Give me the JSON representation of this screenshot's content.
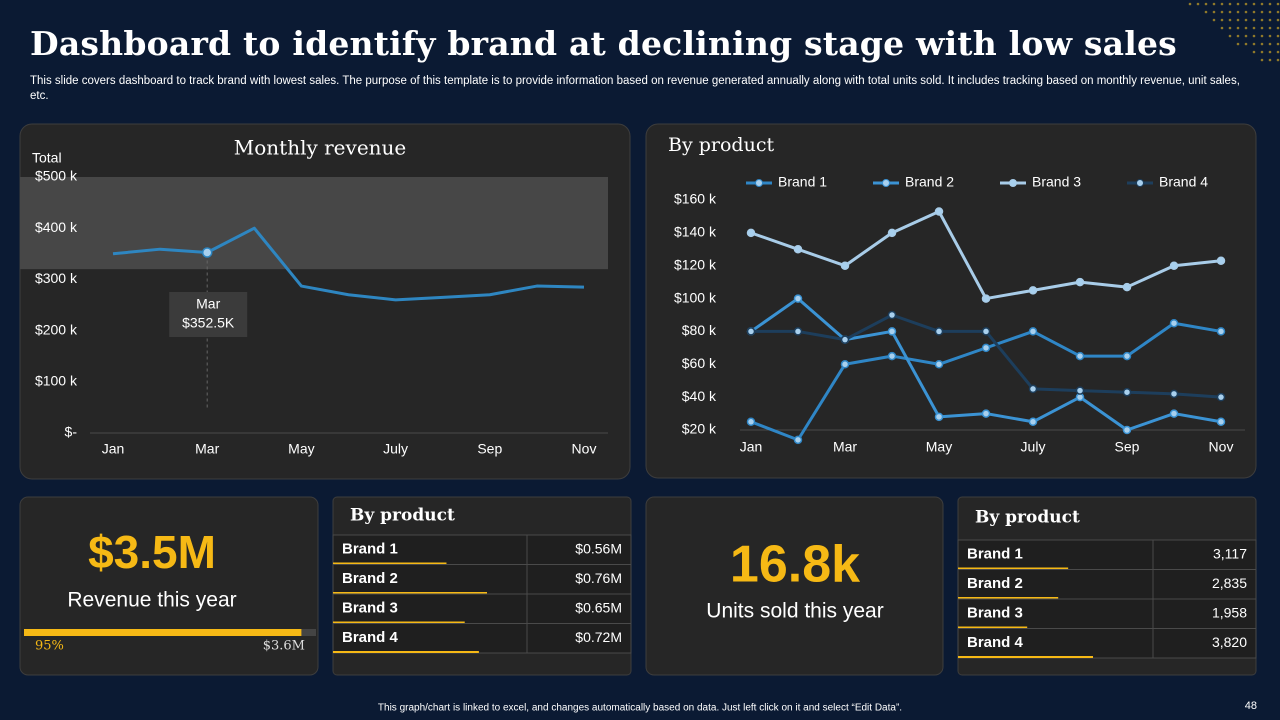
{
  "header": {
    "title": "Dashboard to identify brand at declining stage with low sales",
    "subtitle": "This slide covers dashboard to track brand with lowest sales. The purpose of this template is to provide information based on revenue generated annually along with total units sold. It includes tracking based on monthly revenue, unit sales, etc."
  },
  "chart_data": [
    {
      "type": "line",
      "title": "Monthly revenue",
      "y_label": "Total",
      "categories": [
        "Jan",
        null,
        "Mar",
        null,
        "May",
        null,
        "July",
        null,
        "Sep",
        null,
        "Nov"
      ],
      "series": [
        {
          "name": "Total",
          "color": "#2e86c1",
          "values": [
            350,
            359,
            352.5,
            400,
            287,
            270,
            260,
            265,
            270,
            287,
            285
          ]
        }
      ],
      "ylim": [
        0,
        500
      ],
      "yticks": [
        {
          "value": 0,
          "label": "$-"
        },
        {
          "value": 100,
          "label": "$100 k"
        },
        {
          "value": 200,
          "label": "$200 k"
        },
        {
          "value": 300,
          "label": "$300 k"
        },
        {
          "value": 400,
          "label": "$400 k"
        },
        {
          "value": 500,
          "label": "$500 k"
        }
      ],
      "highlight_range": [
        320,
        500
      ],
      "tooltip": {
        "title": "Mar",
        "label": "$352.5K"
      },
      "grid": false
    },
    {
      "type": "line",
      "title": "By product",
      "categories": [
        "Jan",
        null,
        "Mar",
        null,
        "May",
        null,
        "July",
        null,
        "Sep",
        null,
        "Nov"
      ],
      "series": [
        {
          "name": "Brand 1",
          "color": "#2f86c6",
          "values": [
            25,
            14,
            60,
            65,
            60,
            70,
            80,
            65,
            65,
            85,
            80
          ]
        },
        {
          "name": "Brand 2",
          "color": "#3b93d4",
          "values": [
            80,
            100,
            75,
            80,
            28,
            30,
            25,
            40,
            20,
            30,
            25
          ]
        },
        {
          "name": "Brand 3",
          "color": "#a8cce8",
          "values": [
            140,
            130,
            120,
            140,
            153,
            100,
            105,
            110,
            107,
            120,
            123
          ]
        },
        {
          "name": "Brand 4",
          "color": "#1d3e5c",
          "values": [
            80,
            80,
            75,
            90,
            80,
            80,
            45,
            44,
            43,
            42,
            40
          ]
        }
      ],
      "ylim": [
        20,
        160
      ],
      "yticks": [
        {
          "value": 20,
          "label": "$20 k"
        },
        {
          "value": 40,
          "label": "$40 k"
        },
        {
          "value": 60,
          "label": "$60 k"
        },
        {
          "value": 80,
          "label": "$80 k"
        },
        {
          "value": 100,
          "label": "$100 k"
        },
        {
          "value": 120,
          "label": "$120 k"
        },
        {
          "value": 140,
          "label": "$140 k"
        },
        {
          "value": 160,
          "label": "$160 k"
        }
      ],
      "legend": "top",
      "grid": false
    }
  ],
  "revenue_card": {
    "value": "$3.5M",
    "label": "Revenue this year",
    "progress": {
      "value": 95,
      "label": "95%"
    },
    "target": "$3.6M"
  },
  "revenue_table": {
    "title": "By product",
    "rows": [
      {
        "name": "Brand 1",
        "value": 0.56,
        "label": "$0.56M"
      },
      {
        "name": "Brand 2",
        "value": 0.76,
        "label": "$0.76M"
      },
      {
        "name": "Brand 3",
        "value": 0.65,
        "label": "$0.65M"
      },
      {
        "name": "Brand 4",
        "value": 0.72,
        "label": "$0.72M"
      }
    ]
  },
  "units_card": {
    "value": "16.8k",
    "label": "Units sold this year"
  },
  "units_table": {
    "title": "By product",
    "rows": [
      {
        "name": "Brand 1",
        "value": 3117,
        "label": "3,117"
      },
      {
        "name": "Brand 2",
        "value": 2835,
        "label": "2,835"
      },
      {
        "name": "Brand 3",
        "value": 1958,
        "label": "1,958"
      },
      {
        "name": "Brand 4",
        "value": 3820,
        "label": "3,820"
      }
    ]
  },
  "footer": {
    "note": "This graph/chart is linked to excel, and changes automatically based on data. Just left click on it and select “Edit Data”.",
    "page": "48"
  }
}
